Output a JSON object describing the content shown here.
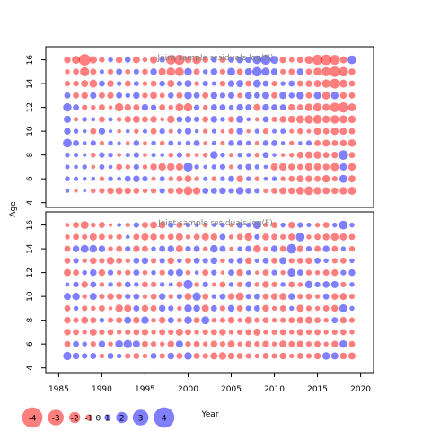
{
  "colors": {
    "positive": "#0000ff",
    "negative": "#ff0000",
    "bubble_alpha": 0.5
  },
  "chart_data": {
    "type": "scatter",
    "subtype": "bubble-residuals",
    "xlabel": "Year",
    "ylabel": "Age",
    "x_ticks": [
      1985,
      1990,
      1995,
      2000,
      2005,
      2010,
      2015,
      2020
    ],
    "y_ticks": [
      4,
      6,
      8,
      10,
      12,
      14,
      16
    ],
    "xlim": [
      1983.5,
      2021.5
    ],
    "ylim": [
      3.6,
      17.1
    ],
    "legend": {
      "placement": "bottom-left",
      "values": [
        -4,
        -3,
        -2,
        -1,
        0,
        1,
        2,
        3,
        4
      ]
    },
    "panels": [
      {
        "title": "Joint sample residuals log(N)",
        "years_from": 1986,
        "years_to": 2019,
        "ages_from": 5,
        "ages_to": 16,
        "residuals": {
          "16": [
            -1.2,
            -1.8,
            -4.0,
            -1.5,
            -0.8,
            0.6,
            -1.2,
            0.9,
            -1.4,
            -0.6,
            -1.5,
            0.8,
            -2.6,
            -3.0,
            -1.2,
            -2.2,
            -0.9,
            0.8,
            -1.0,
            0.9,
            1.3,
            1.1,
            2.2,
            2.8,
            1.8,
            -1.2,
            -0.7,
            -1.1,
            -1.8,
            -3.0,
            -3.2,
            -2.8,
            -1.4,
            2.2
          ],
          "15": [
            -0.6,
            -1.0,
            -2.4,
            -1.0,
            0.5,
            -0.8,
            1.0,
            -0.7,
            0.8,
            -0.9,
            1.2,
            -1.5,
            -2.0,
            -2.2,
            1.6,
            -1.0,
            0.6,
            1.2,
            -0.8,
            1.8,
            -1.0,
            1.4,
            2.6,
            1.9,
            1.2,
            -0.8,
            -1.0,
            1.2,
            -1.0,
            -1.8,
            -2.4,
            -3.2,
            -2.6,
            -1.2
          ],
          "14": [
            -0.8,
            -0.9,
            -1.4,
            -1.8,
            1.0,
            -1.2,
            0.6,
            -1.0,
            0.7,
            -0.6,
            -1.0,
            0.9,
            -1.4,
            0.8,
            1.4,
            -0.6,
            0.8,
            0.5,
            -0.9,
            1.2,
            1.4,
            -1.0,
            1.8,
            1.0,
            -0.8,
            0.6,
            1.0,
            -1.0,
            -1.2,
            -1.4,
            -2.0,
            -2.8,
            -1.8,
            -1.0
          ],
          "13": [
            1.0,
            -1.0,
            -1.2,
            1.1,
            -1.0,
            -1.1,
            1.0,
            0.6,
            1.2,
            -0.8,
            -1.3,
            -0.7,
            0.9,
            -1.0,
            1.6,
            1.0,
            -1.0,
            1.2,
            0.8,
            1.1,
            -0.7,
            1.3,
            1.0,
            1.4,
            -1.0,
            1.4,
            0.9,
            1.6,
            -1.0,
            1.5,
            -1.8,
            1.6,
            -1.2,
            -1.0
          ],
          "12": [
            2.0,
            1.0,
            -0.8,
            -0.6,
            -1.0,
            -0.4,
            -2.0,
            -1.2,
            -1.0,
            1.2,
            0.8,
            -1.0,
            -0.6,
            -1.8,
            -2.0,
            0.8,
            -0.6,
            1.0,
            1.0,
            0.6,
            1.2,
            1.0,
            -1.4,
            1.2,
            1.0,
            1.0,
            -1.2,
            -1.0,
            -1.6,
            -2.0,
            -1.5,
            -2.6,
            -3.0,
            -1.8
          ],
          "11": [
            1.4,
            -0.5,
            0.6,
            0.4,
            -1.0,
            0.5,
            -0.6,
            -1.2,
            -1.4,
            -1.0,
            -1.2,
            -0.4,
            -1.6,
            1.0,
            1.2,
            0.8,
            -1.0,
            1.2,
            0.6,
            -1.0,
            1.4,
            0.4,
            -0.5,
            1.0,
            -0.8,
            -1.2,
            -1.4,
            -1.8,
            -2.0,
            -2.2,
            -1.6,
            -2.0,
            -1.8,
            -1.6
          ],
          "10": [
            1.2,
            0.6,
            0.4,
            -1.0,
            1.2,
            0.3,
            -0.4,
            0.4,
            -0.6,
            0.5,
            -1.0,
            0.8,
            -0.5,
            0.6,
            1.2,
            0.4,
            -0.6,
            0.5,
            -0.4,
            -0.8,
            1.2,
            -0.4,
            0.6,
            -0.8,
            0.5,
            0.7,
            -0.5,
            -0.9,
            -0.5,
            -1.4,
            -1.0,
            -1.6,
            -1.4,
            -1.0
          ],
          "9": [
            2.2,
            1.0,
            0.4,
            0.8,
            -0.5,
            0.6,
            0.3,
            -0.4,
            0.9,
            -0.4,
            0.6,
            -0.6,
            0.7,
            0.4,
            0.6,
            1.0,
            -0.4,
            0.5,
            -0.5,
            0.9,
            0.9,
            0.6,
            -0.5,
            0.9,
            1.0,
            0.4,
            -0.6,
            0.4,
            0.8,
            -1.0,
            -1.4,
            -1.0,
            -1.2,
            -1.6
          ],
          "8": [
            0.6,
            0.5,
            0.3,
            -0.6,
            0.8,
            0.6,
            -0.4,
            0.5,
            0.8,
            -0.4,
            0.5,
            0.4,
            -0.6,
            0.8,
            -0.6,
            -0.4,
            -0.6,
            1.6,
            0.6,
            -0.5,
            0.6,
            0.5,
            -0.6,
            1.0,
            0.4,
            -0.4,
            -0.6,
            -1.2,
            -1.4,
            -1.6,
            -1.0,
            -1.2,
            2.6,
            -1.0
          ],
          "7": [
            0.5,
            0.4,
            0.6,
            -0.4,
            0.7,
            0.4,
            -1.0,
            -0.6,
            0.8,
            -0.6,
            -1.2,
            -1.6,
            -1.6,
            -1.4,
            2.4,
            0.6,
            0.4,
            0.6,
            0.8,
            -0.5,
            0.6,
            1.0,
            0.6,
            0.4,
            -1.4,
            -1.6,
            -1.2,
            -1.0,
            -1.6,
            -1.4,
            -1.2,
            -1.8,
            1.4,
            -1.6
          ],
          "6": [
            0.6,
            0.5,
            0.4,
            0.4,
            -0.6,
            0.6,
            0.4,
            1.0,
            1.2,
            0.8,
            -0.5,
            0.7,
            -0.6,
            -1.0,
            -1.4,
            -0.6,
            0.5,
            -0.6,
            0.6,
            1.0,
            -1.2,
            0.6,
            -0.6,
            0.4,
            0.6,
            -0.6,
            -1.0,
            -1.4,
            -1.2,
            -1.0,
            -1.6,
            -0.8,
            1.8,
            -1.4
          ],
          "5": [
            0.4,
            -0.3,
            0.2,
            -0.6,
            -0.8,
            -1.2,
            -1.4,
            -1.2,
            -1.0,
            -0.6,
            -0.8,
            0.8,
            -1.0,
            -1.4,
            -2.2,
            -1.6,
            1.0,
            1.0,
            1.2,
            0.8,
            1.6,
            1.0,
            0.8,
            -0.6,
            -1.0,
            -1.4,
            -1.2,
            -1.8,
            -2.2,
            -1.6,
            -1.4,
            -1.2,
            -1.6,
            -1.8
          ]
        }
      },
      {
        "title": "Joint sample residuals log(F)",
        "years_from": 1986,
        "years_to": 2019,
        "ages_from": 5,
        "ages_to": 16,
        "residuals": {
          "16": [
            -0.4,
            -1.0,
            -1.8,
            -0.6,
            -1.0,
            -0.3,
            0.4,
            -0.5,
            0.8,
            -1.0,
            -1.4,
            -1.2,
            0.8,
            -1.0,
            0.6,
            0.4,
            -0.6,
            0.4,
            0.6,
            -0.4,
            1.0,
            0.6,
            1.8,
            -0.5,
            -1.0,
            0.6,
            -1.2,
            0.8,
            0.5,
            -0.6,
            -1.0,
            0.6,
            2.2,
            0.6
          ],
          "15": [
            -0.6,
            -1.0,
            -0.8,
            -1.4,
            -1.0,
            -0.6,
            -0.8,
            0.4,
            -1.0,
            -1.4,
            -1.2,
            -0.8,
            -1.0,
            -1.4,
            -0.6,
            -1.0,
            -1.4,
            -1.2,
            1.0,
            -0.6,
            -1.0,
            -1.6,
            0.8,
            -1.2,
            -1.0,
            -0.8,
            -1.2,
            2.2,
            -0.6,
            -1.0,
            -1.2,
            -1.6,
            -1.4,
            -1.0
          ],
          "14": [
            -1.0,
            1.2,
            1.8,
            1.6,
            1.2,
            -0.6,
            -1.0,
            0.8,
            -1.2,
            -1.0,
            0.6,
            1.0,
            1.2,
            -1.4,
            0.8,
            1.0,
            -0.6,
            1.6,
            1.0,
            -0.4,
            0.6,
            1.0,
            -1.6,
            -0.6,
            1.2,
            -1.0,
            2.6,
            -1.2,
            0.8,
            -1.0,
            1.2,
            -1.0,
            0.6,
            -0.8
          ],
          "13": [
            -1.0,
            0.8,
            -0.6,
            -1.2,
            -0.8,
            -1.6,
            -1.0,
            -0.6,
            1.0,
            1.2,
            -0.8,
            0.8,
            -1.2,
            0.6,
            -1.0,
            1.0,
            0.8,
            1.2,
            -0.6,
            0.8,
            1.0,
            -1.2,
            0.6,
            1.0,
            -1.0,
            1.4,
            -0.8,
            -1.0,
            -1.2,
            1.0,
            0.6,
            -0.8,
            -1.0,
            0.6
          ],
          "12": [
            -1.4,
            -1.0,
            0.6,
            1.2,
            -1.2,
            0.8,
            -0.6,
            -0.8,
            1.0,
            -0.6,
            0.6,
            -0.8,
            1.0,
            1.4,
            -0.6,
            0.4,
            -1.0,
            0.8,
            -0.4,
            1.0,
            -1.2,
            0.6,
            -0.4,
            -1.0,
            0.8,
            -0.6,
            1.8,
            1.0,
            -0.8,
            -0.6,
            -1.0,
            -1.2,
            0.8,
            1.2
          ],
          "11": [
            0.4,
            0.8,
            -1.2,
            1.0,
            -0.6,
            0.6,
            -0.8,
            1.0,
            0.6,
            -1.0,
            -0.8,
            0.6,
            0.4,
            -1.0,
            2.4,
            -0.6,
            0.8,
            -0.4,
            -1.0,
            0.6,
            -0.8,
            1.0,
            -0.6,
            -1.2,
            -0.8,
            0.6,
            -1.0,
            -0.6,
            1.6,
            0.8,
            1.2,
            1.4,
            -0.8,
            0.6
          ],
          "10": [
            1.4,
            1.6,
            -0.6,
            1.4,
            -0.8,
            -1.2,
            -1.0,
            0.8,
            1.0,
            -0.6,
            -1.0,
            1.2,
            -0.6,
            0.8,
            -1.4,
            2.0,
            -1.0,
            0.6,
            1.0,
            -1.2,
            -1.8,
            0.8,
            1.0,
            -1.0,
            -1.2,
            -1.4,
            1.2,
            -0.8,
            -1.0,
            -0.6,
            1.0,
            -1.2,
            -1.4,
            -0.8
          ],
          "9": [
            -1.0,
            0.6,
            -0.8,
            -0.6,
            -1.0,
            -0.4,
            -1.6,
            -1.4,
            1.0,
            -1.2,
            -1.0,
            1.2,
            0.8,
            -0.6,
            1.6,
            1.2,
            -1.4,
            1.0,
            -0.8,
            1.2,
            -1.0,
            0.8,
            1.0,
            -1.2,
            -0.6,
            -1.0,
            0.6,
            -1.4,
            -0.8,
            -0.6,
            -1.0,
            -1.2,
            1.8,
            0.6
          ],
          "8": [
            -1.2,
            -0.8,
            -1.4,
            -1.0,
            0.6,
            -0.8,
            -1.0,
            1.4,
            -1.2,
            1.6,
            -0.6,
            -1.2,
            1.0,
            -0.6,
            1.6,
            -1.0,
            1.8,
            -0.6,
            -0.8,
            -1.2,
            -0.6,
            -1.4,
            -0.8,
            -1.0,
            -0.6,
            -0.8,
            -1.0,
            -1.2,
            -1.4,
            -1.0,
            -0.6,
            1.0,
            -1.2,
            -0.8
          ],
          "7": [
            -1.2,
            -1.0,
            -0.6,
            -1.4,
            -0.8,
            -1.0,
            -0.6,
            -0.8,
            -1.0,
            -1.2,
            -0.6,
            -1.0,
            -0.8,
            -1.4,
            -1.0,
            -0.6,
            -0.8,
            -1.0,
            -1.2,
            -0.6,
            -0.8,
            -1.0,
            -1.4,
            -0.6,
            -0.8,
            -1.0,
            -0.6,
            -1.2,
            -0.8,
            -1.0,
            -0.6,
            -0.8,
            -1.0,
            -0.6
          ],
          "6": [
            -1.0,
            1.0,
            0.6,
            -0.8,
            1.2,
            -0.6,
            1.6,
            2.0,
            1.4,
            -1.0,
            -0.8,
            -0.6,
            -1.2,
            1.4,
            -0.8,
            -1.0,
            -0.6,
            -1.2,
            -0.8,
            -1.4,
            -0.6,
            -1.0,
            -0.8,
            -1.2,
            -0.6,
            -1.4,
            -1.0,
            -1.2,
            -0.8,
            -1.0,
            -0.6,
            -1.2,
            1.6,
            -1.0
          ],
          "5": [
            2.0,
            1.2,
            0.8,
            1.0,
            -0.6,
            1.0,
            0.6,
            -0.8,
            -1.0,
            -0.6,
            1.0,
            -0.8,
            1.2,
            -1.0,
            1.6,
            -1.0,
            -0.8,
            -1.4,
            -1.6,
            -1.2,
            -1.0,
            -0.8,
            -0.6,
            -1.0,
            -0.8,
            -1.2,
            -0.6,
            -1.0,
            -0.8,
            -1.2,
            1.6,
            1.4,
            -1.2,
            -1.4
          ]
        }
      }
    ]
  }
}
